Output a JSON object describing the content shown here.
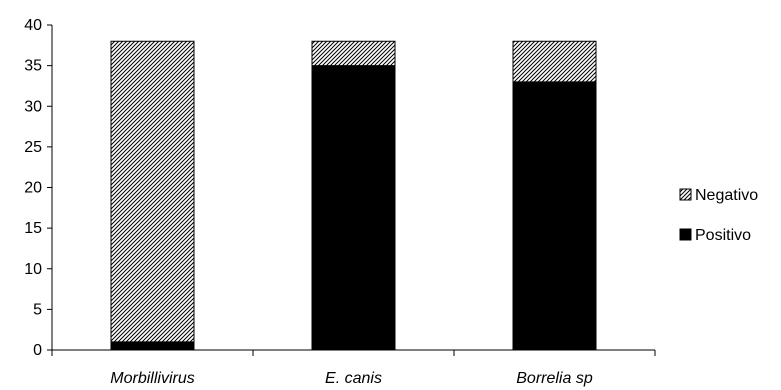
{
  "chart_data": {
    "type": "bar",
    "stacked": true,
    "categories": [
      "Morbillivirus",
      "E. canis",
      "Borrelia sp"
    ],
    "series": [
      {
        "name": "Positivo",
        "values": [
          1,
          35,
          33
        ],
        "color": "#000000",
        "pattern": "solid"
      },
      {
        "name": "Negativo",
        "values": [
          37,
          3,
          5
        ],
        "color": "#000000",
        "pattern": "diagonal-hatch"
      }
    ],
    "ylim": [
      0,
      40
    ],
    "yticks": [
      "0",
      "5",
      "10",
      "15",
      "20",
      "25",
      "30",
      "35",
      "40"
    ],
    "legend_position": "right",
    "legend_order": [
      "Negativo",
      "Positivo"
    ],
    "grid": false
  }
}
